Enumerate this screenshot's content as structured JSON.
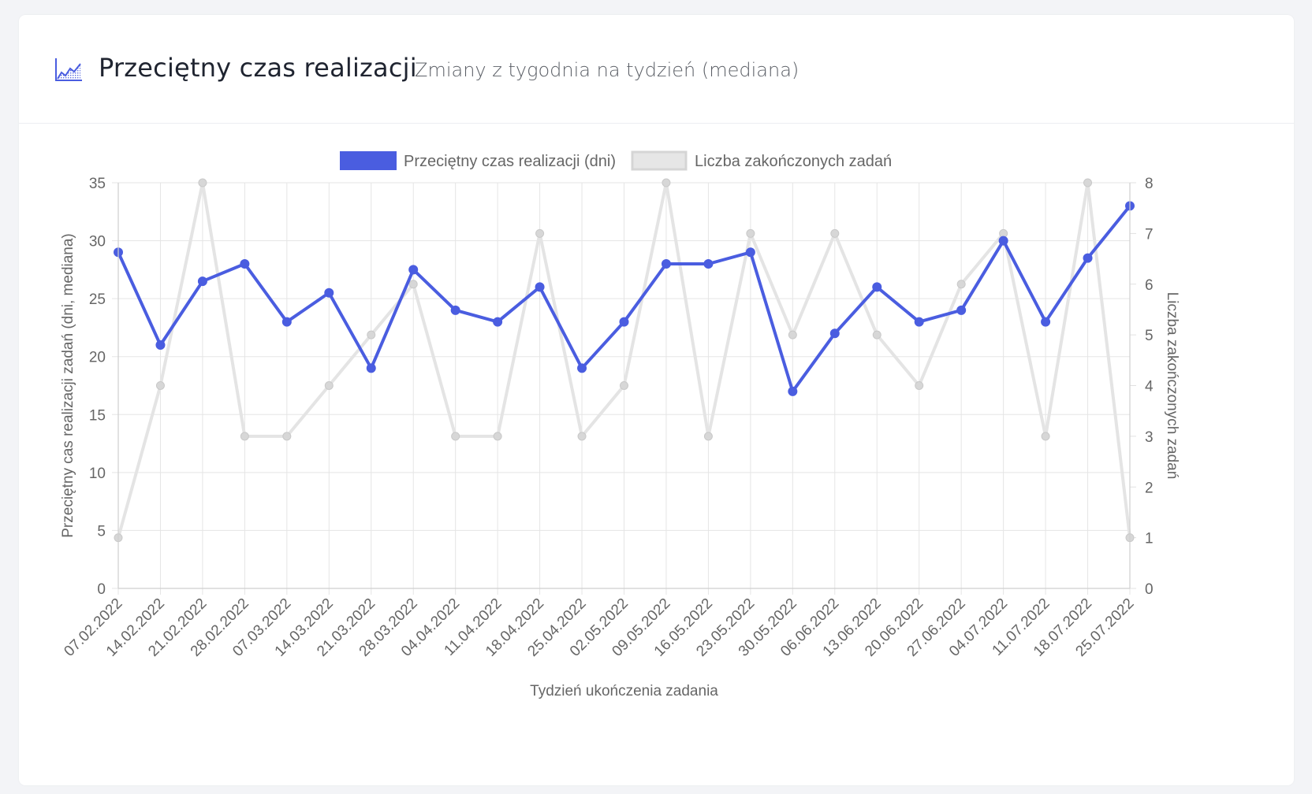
{
  "header": {
    "icon": "area-chart-icon",
    "title": "Przeciętny czas realizacji",
    "subtitle": "Zmiany z tygodnia na tydzień (mediana)"
  },
  "chart_data": {
    "type": "line",
    "categories": [
      "07.02.2022",
      "14.02.2022",
      "21.02.2022",
      "28.02.2022",
      "07.03.2022",
      "14.03.2022",
      "21.03.2022",
      "28.03.2022",
      "04.04.2022",
      "11.04.2022",
      "18.04.2022",
      "25.04.2022",
      "02.05.2022",
      "09.05.2022",
      "16.05.2022",
      "23.05.2022",
      "30.05.2022",
      "06.06.2022",
      "13.06.2022",
      "20.06.2022",
      "27.06.2022",
      "04.07.2022",
      "11.07.2022",
      "18.07.2022",
      "25.07.2022"
    ],
    "series": [
      {
        "name": "Przeciętny czas realizacji (dni)",
        "axis": "left",
        "color": "#4a5de0",
        "values": [
          29,
          21,
          26.5,
          28,
          23,
          25.5,
          19,
          27.5,
          24,
          23,
          26,
          19,
          23,
          28,
          28,
          29,
          17,
          22,
          26,
          23,
          24,
          30,
          23,
          28.5,
          33
        ]
      },
      {
        "name": "Liczba zakończonych zadań",
        "axis": "right",
        "color": "#e2e2e2",
        "values": [
          1,
          4,
          8,
          3,
          3,
          4,
          5,
          6,
          3,
          3,
          7,
          3,
          4,
          8,
          3,
          7,
          5,
          7,
          5,
          4,
          6,
          7,
          3,
          8,
          1
        ]
      }
    ],
    "xlabel": "Tydzień ukończenia zadania",
    "ylabel": "Przeciętny cas realizacji zadań (dni, mediana)",
    "y2label": "Liczba zakończonych zadań",
    "ylim": [
      0,
      35
    ],
    "y2lim": [
      0,
      8
    ],
    "yticks": [
      "0",
      "5",
      "10",
      "15",
      "20",
      "25",
      "30",
      "35"
    ],
    "y2ticks": [
      "0",
      "1",
      "2",
      "3",
      "4",
      "5",
      "6",
      "7",
      "8"
    ],
    "grid": true,
    "legend_position": "top"
  }
}
